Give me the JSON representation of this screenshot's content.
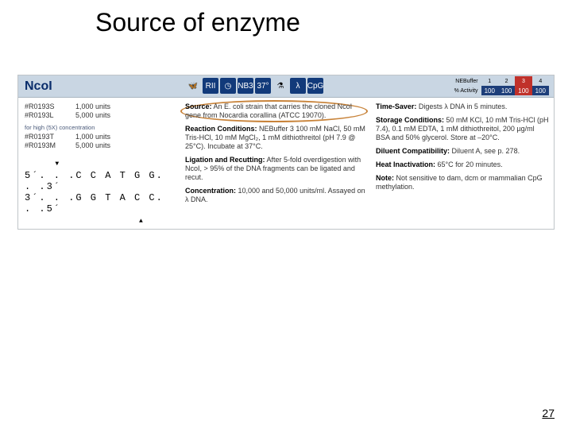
{
  "title": "Source of enzyme",
  "pageNumber": "27",
  "header": {
    "enzymeName": "NcoI",
    "bufferLabel": "NEBuffer",
    "activityLabel": "% Activity",
    "buffers": [
      "1",
      "2",
      "3",
      "4"
    ],
    "activities": [
      "100",
      "100",
      "100",
      "100"
    ],
    "highlightIndex": 2,
    "icons": [
      "butterfly",
      "RII",
      "clock",
      "NB3",
      "37°",
      "vortex",
      "lambda",
      "cpg"
    ]
  },
  "col1": {
    "products1": [
      {
        "id": "#R0193S",
        "units": "1,000 units"
      },
      {
        "id": "#R0193L",
        "units": "5,000 units"
      }
    ],
    "concNote": "for high (5X) concentration",
    "products2": [
      {
        "id": "#R0193T",
        "units": "1,000 units"
      },
      {
        "id": "#R0193M",
        "units": "5,000 units"
      }
    ],
    "seqTop": "5´. . .C C A T G G. . .3´",
    "seqBot": "3´. . .G G T A C C. . .5´"
  },
  "col2": {
    "source": {
      "label": "Source:",
      "text": "An E. coli strain that carries the cloned NcoI gene from Nocardia corallina (ATCC 19070)."
    },
    "reaction": {
      "label": "Reaction Conditions:",
      "text": "NEBuffer 3\n100 mM NaCl, 50 mM Tris-HCl, 10 mM MgCl₂, 1 mM dithiothreitol (pH 7.9 @ 25°C). Incubate at 37°C."
    },
    "ligation": {
      "label": "Ligation and Recutting:",
      "text": "After 5-fold overdigestion with NcoI, > 95% of the DNA fragments can be ligated and recut."
    },
    "concentration": {
      "label": "Concentration:",
      "text": "10,000 and 50,000 units/ml.\nAssayed on λ DNA."
    }
  },
  "col3": {
    "timesaver": {
      "label": "Time-Saver:",
      "text": "Digests λ DNA in 5 minutes."
    },
    "storage": {
      "label": "Storage Conditions:",
      "text": "50 mM KCl, 10 mM Tris-HCl (pH 7.4), 0.1 mM EDTA, 1 mM dithiothreitol, 200 µg/ml BSA and 50% glycerol. Store at –20°C."
    },
    "diluent": {
      "label": "Diluent Compatibility:",
      "text": "Diluent A, see p. 278."
    },
    "heat": {
      "label": "Heat Inactivation:",
      "text": "65°C for 20 minutes."
    },
    "note": {
      "label": "Note:",
      "text": "Not sensitive to dam, dcm or mammalian CpG methylation."
    }
  }
}
